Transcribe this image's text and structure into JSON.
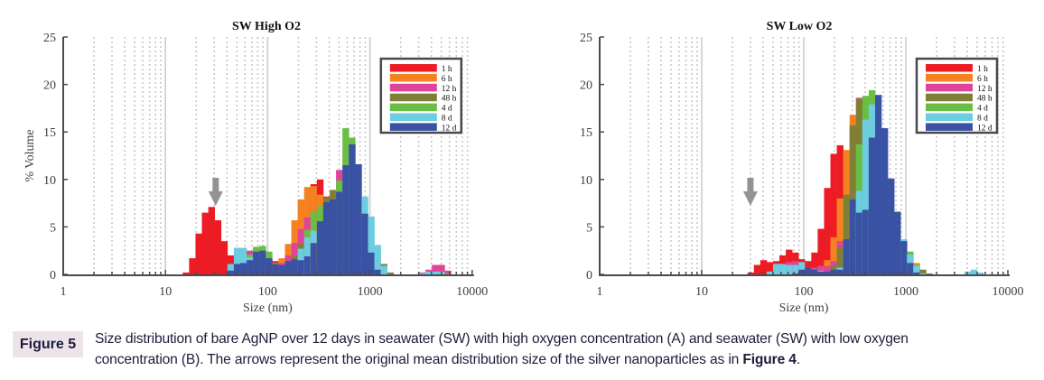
{
  "figure": {
    "label": "Figure 5",
    "caption_line1": "Size distribution of bare AgNP over 12 days in seawater (SW) with high oxygen concentration (A) and seawater (SW) with low oxygen",
    "caption_line2": "concentration (B). The arrows represent the original mean distribution size of the silver nanoparticles as in ",
    "caption_ref": "Figure 4",
    "caption_end": "."
  },
  "chart_data": [
    {
      "type": "bar",
      "subtype": "overlaid histogram (log x)",
      "title": "SW High O2",
      "xlabel": "Size (nm)",
      "ylabel": "% Volume",
      "xscale": "log",
      "xlim": [
        1,
        10000
      ],
      "ylim": [
        0,
        25
      ],
      "xticks": [
        "1",
        "10",
        "100",
        "1000",
        "10000"
      ],
      "yticks": [
        "0",
        "5",
        "10",
        "15",
        "20",
        "25"
      ],
      "grid": true,
      "legend_position": "top-right",
      "series_names": [
        "1 h",
        "6 h",
        "12 h",
        "48 h",
        "4 d",
        "8 d",
        "12 d"
      ],
      "series_colors": [
        "#ed1c24",
        "#f58220",
        "#e0439a",
        "#808035",
        "#6abd45",
        "#6dcde0",
        "#3a52a3"
      ],
      "bin_log10_center_start": 1.2,
      "bin_log10_width": 0.0625,
      "arrow_size_nm": 31,
      "bins": [
        [
          0.2,
          0,
          0,
          0,
          0,
          0,
          0
        ],
        [
          1.7,
          0,
          0,
          0,
          0,
          0,
          0
        ],
        [
          4.3,
          0,
          0,
          0,
          0,
          0,
          0
        ],
        [
          6.5,
          0,
          0,
          0,
          0,
          0,
          0
        ],
        [
          7.1,
          0,
          0,
          0,
          0,
          0,
          0
        ],
        [
          5.7,
          0,
          0,
          0,
          0,
          0,
          0
        ],
        [
          3.5,
          0,
          0,
          0,
          0,
          0,
          0
        ],
        [
          2.0,
          0,
          0,
          0,
          0,
          1.1,
          0.4
        ],
        [
          0,
          0,
          0,
          0,
          0,
          2.8,
          1.1
        ],
        [
          0,
          0,
          0,
          0,
          0,
          2.8,
          1.2
        ],
        [
          0,
          0,
          2.5,
          0,
          2.1,
          1.8,
          1.5
        ],
        [
          0,
          0,
          0,
          0,
          2.9,
          0,
          2.4
        ],
        [
          0,
          0,
          0,
          0,
          3.0,
          0,
          2.5
        ],
        [
          0,
          0,
          0,
          0,
          2.4,
          0,
          1.7
        ],
        [
          1.4,
          0,
          0,
          0,
          1.2,
          0,
          1.1
        ],
        [
          0,
          1.7,
          1.2,
          0,
          0,
          0,
          1.0
        ],
        [
          0,
          3.2,
          2.0,
          0,
          0,
          0,
          1.4
        ],
        [
          0,
          5.7,
          3.3,
          1.9,
          0,
          0,
          1.6
        ],
        [
          0,
          7.9,
          4.8,
          3.2,
          0,
          2.7,
          1.5
        ],
        [
          0,
          9.2,
          6.0,
          0,
          4.7,
          3.9,
          1.9
        ],
        [
          9.5,
          9.3,
          0,
          0,
          6.6,
          4.6,
          3.3
        ],
        [
          10.0,
          8.4,
          0,
          0,
          7.2,
          0,
          5.6
        ],
        [
          8.2,
          0,
          0,
          8.1,
          0,
          0,
          7.6
        ],
        [
          0,
          0,
          0,
          8.9,
          0,
          0,
          7.9
        ],
        [
          0,
          0,
          11.0,
          0,
          9.9,
          0,
          8.7
        ],
        [
          0,
          0,
          0,
          0,
          15.4,
          0,
          11.5
        ],
        [
          0,
          0,
          0,
          0,
          14.4,
          0,
          13.7
        ],
        [
          0,
          0,
          0,
          0,
          0,
          0,
          11.6
        ],
        [
          0,
          0,
          0,
          0,
          0,
          8.2,
          6.4
        ],
        [
          0,
          0,
          0,
          0,
          0,
          6.1,
          2.3
        ],
        [
          0,
          0,
          0,
          0,
          0,
          3.1,
          0.5
        ],
        [
          0,
          0,
          0,
          1.1,
          0,
          0.9,
          0
        ],
        [
          0,
          0,
          0,
          0.2,
          0,
          0,
          0
        ],
        [
          0,
          0,
          0,
          0,
          0,
          0,
          0
        ],
        [
          0,
          0,
          0,
          0,
          0,
          0,
          0
        ],
        [
          0,
          0,
          0,
          0,
          0,
          0,
          0
        ],
        [
          0,
          0,
          0,
          0,
          0,
          0,
          0
        ],
        [
          0,
          0,
          0.2,
          0,
          0,
          0.1,
          0
        ],
        [
          0,
          0,
          0.5,
          0,
          0,
          0.3,
          0
        ],
        [
          0,
          0,
          1.0,
          0,
          0,
          0.3,
          0
        ],
        [
          0,
          0,
          1.0,
          0,
          0,
          0.3,
          0
        ],
        [
          0,
          0,
          0.4,
          0,
          0.1,
          0,
          0
        ]
      ]
    },
    {
      "type": "bar",
      "subtype": "overlaid histogram (log x)",
      "title": "SW Low O2",
      "xlabel": "Size (nm)",
      "ylabel": "",
      "xscale": "log",
      "xlim": [
        1,
        10000
      ],
      "ylim": [
        0,
        25
      ],
      "xticks": [
        "1",
        "10",
        "100",
        "1000",
        "10000"
      ],
      "yticks": [
        "0",
        "5",
        "10",
        "15",
        "20",
        "25"
      ],
      "grid": true,
      "legend_position": "top-right",
      "series_names": [
        "1 h",
        "6 h",
        "12 h",
        "48 h",
        "4 d",
        "8 d",
        "12 d"
      ],
      "series_colors": [
        "#ed1c24",
        "#f58220",
        "#e0439a",
        "#808035",
        "#6abd45",
        "#6dcde0",
        "#3a52a3"
      ],
      "bin_log10_center_start": 1.48,
      "bin_log10_width": 0.0625,
      "arrow_size_nm": 30,
      "bins": [
        [
          0.2,
          0,
          0,
          0,
          0,
          0,
          0
        ],
        [
          1.0,
          0,
          0,
          0,
          0,
          0,
          0
        ],
        [
          1.5,
          0,
          0,
          0,
          0,
          0,
          0
        ],
        [
          1.3,
          0,
          0,
          0,
          0,
          0.3,
          0
        ],
        [
          1.4,
          0,
          0,
          0,
          0,
          1.1,
          0
        ],
        [
          2.0,
          0,
          0,
          0,
          0,
          1.1,
          0
        ],
        [
          2.6,
          0,
          1.3,
          0,
          0,
          1.0,
          0
        ],
        [
          2.3,
          0,
          1.4,
          0,
          0,
          1.0,
          0.1
        ],
        [
          1.6,
          0,
          0,
          0,
          0,
          1.3,
          0.5
        ],
        [
          1.4,
          0,
          0,
          0,
          0,
          0,
          0.7
        ],
        [
          2.3,
          0,
          0.7,
          0,
          0,
          0,
          0.5
        ],
        [
          4.8,
          0,
          0.9,
          0,
          0,
          0.4,
          0.3
        ],
        [
          9.1,
          1.5,
          0.9,
          0,
          0.3,
          0,
          0.3
        ],
        [
          12.7,
          3.9,
          1.4,
          0.9,
          0,
          0,
          0.5
        ],
        [
          13.6,
          8.0,
          3.5,
          2.9,
          0,
          0.7,
          0.5
        ],
        [
          0,
          13.1,
          0,
          8.4,
          0,
          0,
          3.7
        ],
        [
          0,
          16.8,
          0,
          15.7,
          0,
          0,
          7.9
        ],
        [
          0,
          0,
          18.6,
          18.5,
          13.7,
          8.8,
          6.5
        ],
        [
          0,
          0,
          0,
          0,
          18.8,
          16.3,
          6.8
        ],
        [
          0,
          0,
          0,
          0,
          19.4,
          17.9,
          14.4
        ],
        [
          0,
          0,
          0,
          0,
          0,
          0,
          18.9
        ],
        [
          0,
          0,
          0,
          0,
          0,
          0,
          15.4
        ],
        [
          0,
          0,
          0,
          0,
          0,
          0,
          10.1
        ],
        [
          0,
          0,
          0,
          0,
          0,
          0,
          6.6
        ],
        [
          0,
          0,
          0,
          0,
          0,
          3.7,
          3.5
        ],
        [
          0,
          0,
          0,
          0,
          2.4,
          2.1,
          1.2
        ],
        [
          0,
          1.2,
          0,
          0,
          1.0,
          0.9,
          0.2
        ],
        [
          0,
          0,
          0,
          0.5,
          0,
          0.1,
          0
        ],
        [
          0,
          0,
          0,
          0.1,
          0,
          0,
          0
        ],
        [
          0,
          0,
          0,
          0,
          0,
          0,
          0
        ],
        [
          0,
          0,
          0,
          0,
          0,
          0,
          0
        ],
        [
          0,
          0,
          0,
          0,
          0,
          0,
          0
        ],
        [
          0,
          0,
          0,
          0,
          0,
          0,
          0
        ],
        [
          0,
          0,
          0,
          0,
          0,
          0,
          0
        ],
        [
          0,
          0,
          0,
          0,
          0,
          0.3,
          0
        ],
        [
          0,
          0,
          0,
          0,
          0,
          0.5,
          0
        ],
        [
          0,
          0,
          0,
          0,
          0,
          0.2,
          0
        ]
      ]
    }
  ]
}
